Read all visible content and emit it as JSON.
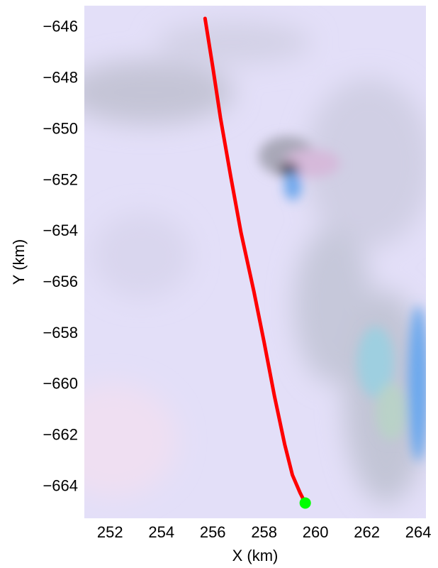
{
  "chart_data": {
    "type": "scatter",
    "title": "",
    "xlabel": "X (km)",
    "ylabel": "Y (km)",
    "xlim": [
      251.0,
      264.3
    ],
    "ylim": [
      -665.3,
      -645.2
    ],
    "xticks": [
      252,
      254,
      256,
      258,
      260,
      262,
      264
    ],
    "yticks": [
      -646,
      -648,
      -650,
      -652,
      -654,
      -656,
      -658,
      -660,
      -662,
      -664
    ],
    "xtick_labels": [
      "252",
      "254",
      "256",
      "258",
      "260",
      "262",
      "264"
    ],
    "ytick_labels": [
      "−646",
      "−648",
      "−650",
      "−652",
      "−654",
      "−656",
      "−658",
      "−660",
      "−662",
      "−664"
    ],
    "grid": false,
    "background": "satellite imagery (pale lavender snow/ice with grey shading and blue melt patches)",
    "series": [
      {
        "type": "line",
        "color": "#ff0000",
        "x": [
          255.7,
          256.0,
          256.3,
          256.7,
          257.1,
          257.6,
          258.0,
          258.4,
          258.8,
          259.1,
          259.4,
          259.6
        ],
        "y": [
          -645.7,
          -647.6,
          -649.6,
          -651.9,
          -654.1,
          -656.4,
          -658.4,
          -660.5,
          -662.4,
          -663.6,
          -664.3,
          -664.7
        ]
      },
      {
        "type": "point",
        "color": "#00ff00",
        "x": [
          259.6
        ],
        "y": [
          -664.7
        ]
      }
    ]
  }
}
